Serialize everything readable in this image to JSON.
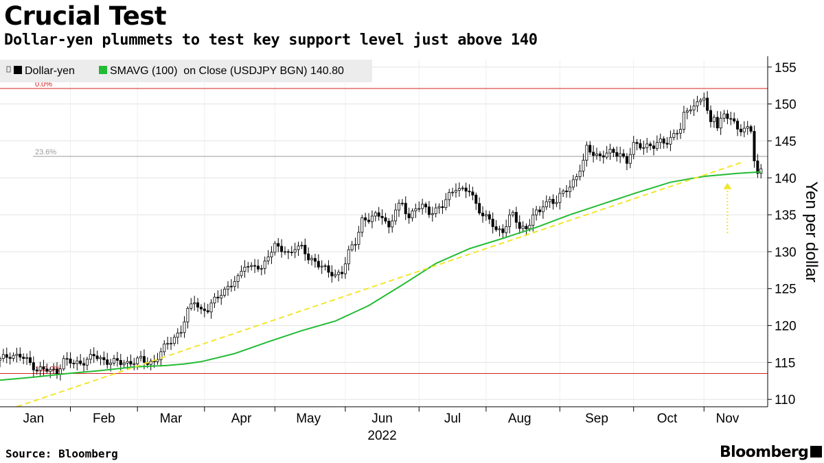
{
  "title": "Crucial Test",
  "subtitle": "Dollar-yen plummets to test key support level just above 140",
  "source": "Source: Bloomberg",
  "brand": "Bloomberg",
  "chart_data": {
    "type": "candlestick",
    "x_unit": "trading days 2022 (0 = Jan 3)",
    "ylabel": "Yen per dollar",
    "ylim": [
      109,
      156
    ],
    "yticks": [
      110,
      115,
      120,
      125,
      130,
      135,
      140,
      145,
      150,
      155
    ],
    "year_label": "2022",
    "months": [
      {
        "label": "Jan",
        "day": 10
      },
      {
        "label": "Feb",
        "day": 31
      },
      {
        "label": "Mar",
        "day": 51
      },
      {
        "label": "Apr",
        "day": 72
      },
      {
        "label": "May",
        "day": 92
      },
      {
        "label": "Jun",
        "day": 114
      },
      {
        "label": "Jul",
        "day": 135
      },
      {
        "label": "Aug",
        "day": 155
      },
      {
        "label": "Sep",
        "day": 178
      },
      {
        "label": "Oct",
        "day": 199
      },
      {
        "label": "Nov",
        "day": 217
      }
    ],
    "month_separators": [
      21,
      41,
      61,
      82,
      103,
      125,
      145,
      167,
      189,
      210
    ],
    "legend": [
      {
        "name": "Dollar-yen",
        "color": "#000000"
      },
      {
        "name": "SMAVG (100)  on Close (USDJPY BGN) 140.80",
        "color": "#22bb33"
      }
    ],
    "fib_levels": [
      {
        "label": "0.0%",
        "value": 152.1,
        "color": "#d62020"
      },
      {
        "label": "23.6%",
        "value": 142.9,
        "color": "#999999"
      },
      {
        "label": "100.0%",
        "value": 113.5,
        "color": "#d62020"
      }
    ],
    "trendline": {
      "color": "#f2e62a",
      "points": [
        [
          5,
          109
        ],
        [
          222,
          142.2
        ]
      ]
    },
    "arrow": {
      "color": "#f2e62a",
      "day": 217,
      "from": 132.5,
      "to": 139.3
    },
    "series": [
      {
        "name": "Dollar-yen",
        "kind": "candles",
        "close_points": [
          [
            0,
            115.3
          ],
          [
            3,
            116.1
          ],
          [
            6,
            115.8
          ],
          [
            9,
            114.9
          ],
          [
            11,
            114.2
          ],
          [
            13,
            114.0
          ],
          [
            15,
            113.8
          ],
          [
            17,
            113.9
          ],
          [
            19,
            115.3
          ],
          [
            22,
            114.8
          ],
          [
            25,
            115.2
          ],
          [
            28,
            115.8
          ],
          [
            30,
            115.5
          ],
          [
            33,
            115.1
          ],
          [
            36,
            114.9
          ],
          [
            39,
            115.1
          ],
          [
            42,
            115.3
          ],
          [
            44,
            115.0
          ],
          [
            46,
            115.2
          ],
          [
            48,
            116.3
          ],
          [
            50,
            117.5
          ],
          [
            52,
            118.5
          ],
          [
            54,
            119.3
          ],
          [
            56,
            121.8
          ],
          [
            58,
            123.5
          ],
          [
            60,
            122.1
          ],
          [
            62,
            122.0
          ],
          [
            64,
            123.4
          ],
          [
            66,
            124.6
          ],
          [
            69,
            125.4
          ],
          [
            71,
            126.3
          ],
          [
            73,
            128.5
          ],
          [
            75,
            127.8
          ],
          [
            76,
            128.0
          ],
          [
            78,
            127.4
          ],
          [
            80,
            129.8
          ],
          [
            82,
            130.8
          ],
          [
            84,
            130.1
          ],
          [
            86,
            129.7
          ],
          [
            88,
            130.8
          ],
          [
            90,
            130.4
          ],
          [
            92,
            129.0
          ],
          [
            94,
            128.8
          ],
          [
            96,
            128.1
          ],
          [
            98,
            127.0
          ],
          [
            100,
            126.9
          ],
          [
            102,
            127.4
          ],
          [
            104,
            129.8
          ],
          [
            106,
            131.2
          ],
          [
            108,
            134.5
          ],
          [
            110,
            134.4
          ],
          [
            112,
            134.7
          ],
          [
            114,
            135.0
          ],
          [
            116,
            133.3
          ],
          [
            118,
            135.6
          ],
          [
            120,
            136.4
          ],
          [
            122,
            134.8
          ],
          [
            124,
            135.9
          ],
          [
            126,
            136.0
          ],
          [
            128,
            135.4
          ],
          [
            130,
            135.8
          ],
          [
            132,
            136.1
          ],
          [
            134,
            137.6
          ],
          [
            136,
            138.9
          ],
          [
            138,
            138.3
          ],
          [
            140,
            138.1
          ],
          [
            142,
            136.5
          ],
          [
            144,
            135.1
          ],
          [
            146,
            134.2
          ],
          [
            148,
            132.8
          ],
          [
            150,
            133.0
          ],
          [
            152,
            134.7
          ],
          [
            153,
            134.9
          ],
          [
            155,
            133.2
          ],
          [
            157,
            133.3
          ],
          [
            159,
            134.9
          ],
          [
            161,
            135.3
          ],
          [
            162,
            136.3
          ],
          [
            164,
            137.1
          ],
          [
            166,
            136.8
          ],
          [
            168,
            137.9
          ],
          [
            170,
            138.9
          ],
          [
            172,
            140.4
          ],
          [
            174,
            142.0
          ],
          [
            175,
            143.9
          ],
          [
            177,
            143.4
          ],
          [
            179,
            143.0
          ],
          [
            181,
            143.2
          ],
          [
            183,
            143.4
          ],
          [
            185,
            143.4
          ],
          [
            187,
            142.1
          ],
          [
            189,
            144.3
          ],
          [
            191,
            144.5
          ],
          [
            193,
            144.4
          ],
          [
            195,
            144.1
          ],
          [
            197,
            144.9
          ],
          [
            199,
            145.1
          ],
          [
            201,
            145.7
          ],
          [
            203,
            146.5
          ],
          [
            204,
            148.5
          ],
          [
            206,
            149.8
          ],
          [
            208,
            149.9
          ],
          [
            210,
            150.9
          ],
          [
            211,
            148.9
          ],
          [
            212,
            147.5
          ],
          [
            213,
            148.7
          ],
          [
            214,
            147.1
          ],
          [
            216,
            148.3
          ],
          [
            218,
            148.0
          ],
          [
            219,
            147.5
          ],
          [
            220,
            146.9
          ],
          [
            222,
            146.5
          ],
          [
            224,
            146.3
          ],
          [
            225,
            142.5
          ],
          [
            226,
            140.5
          ],
          [
            227,
            141.3
          ]
        ]
      },
      {
        "name": "SMAVG (100)",
        "kind": "line",
        "color": "#22bb33",
        "points": [
          [
            0,
            112.6
          ],
          [
            10,
            113.0
          ],
          [
            20,
            113.5
          ],
          [
            30,
            113.9
          ],
          [
            40,
            114.4
          ],
          [
            50,
            114.6
          ],
          [
            55,
            114.8
          ],
          [
            60,
            115.1
          ],
          [
            70,
            116.2
          ],
          [
            80,
            117.8
          ],
          [
            90,
            119.3
          ],
          [
            100,
            120.6
          ],
          [
            110,
            122.7
          ],
          [
            120,
            125.5
          ],
          [
            130,
            128.4
          ],
          [
            140,
            130.4
          ],
          [
            150,
            131.8
          ],
          [
            160,
            133.3
          ],
          [
            170,
            135.0
          ],
          [
            180,
            136.5
          ],
          [
            190,
            138.0
          ],
          [
            200,
            139.4
          ],
          [
            210,
            140.2
          ],
          [
            220,
            140.6
          ],
          [
            227,
            140.8
          ]
        ]
      }
    ]
  }
}
